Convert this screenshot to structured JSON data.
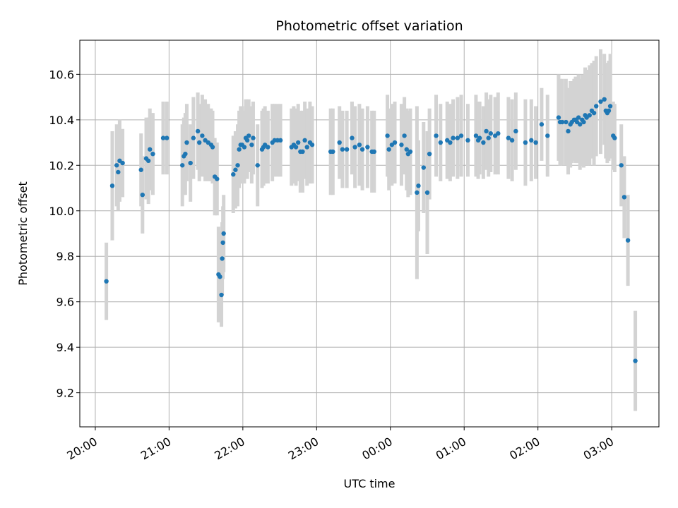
{
  "chart_data": {
    "type": "scatter",
    "title": "Photometric offset variation",
    "xlabel": "UTC time",
    "ylabel": "Photometric offset",
    "x_unit": "hours",
    "x_ticks": [
      {
        "label": "20:00",
        "value": 20
      },
      {
        "label": "21:00",
        "value": 21
      },
      {
        "label": "22:00",
        "value": 22
      },
      {
        "label": "23:00",
        "value": 23
      },
      {
        "label": "00:00",
        "value": 24
      },
      {
        "label": "01:00",
        "value": 25
      },
      {
        "label": "02:00",
        "value": 26
      },
      {
        "label": "03:00",
        "value": 27
      }
    ],
    "y_ticks": [
      "9.2",
      "9.4",
      "9.6",
      "9.8",
      "10.0",
      "10.2",
      "10.4",
      "10.6"
    ],
    "xlim": [
      19.79,
      27.64
    ],
    "ylim": [
      9.05,
      10.75
    ],
    "grid": true,
    "point_color": "#1f77b4",
    "errorbar_color": "#d3d3d3",
    "x": [
      20.15,
      20.23,
      20.29,
      20.31,
      20.33,
      20.37,
      20.62,
      20.64,
      20.69,
      20.72,
      20.74,
      20.78,
      20.92,
      20.97,
      21.18,
      21.2,
      21.22,
      21.24,
      21.29,
      21.33,
      21.39,
      21.41,
      21.45,
      21.49,
      21.53,
      21.57,
      21.59,
      21.62,
      21.65,
      21.67,
      21.69,
      21.71,
      21.72,
      21.73,
      21.74,
      21.87,
      21.9,
      21.93,
      21.95,
      21.97,
      21.99,
      22.02,
      22.04,
      22.06,
      22.08,
      22.12,
      22.14,
      22.2,
      22.26,
      22.28,
      22.3,
      22.34,
      22.4,
      22.43,
      22.47,
      22.51,
      22.66,
      22.69,
      22.72,
      22.75,
      22.78,
      22.81,
      22.84,
      22.87,
      22.91,
      22.94,
      23.19,
      23.22,
      23.31,
      23.35,
      23.41,
      23.48,
      23.52,
      23.58,
      23.62,
      23.69,
      23.75,
      23.78,
      23.96,
      23.98,
      24.02,
      24.06,
      24.15,
      24.19,
      24.22,
      24.24,
      24.27,
      24.36,
      24.38,
      24.45,
      24.5,
      24.53,
      24.62,
      24.68,
      24.77,
      24.81,
      24.85,
      24.91,
      24.96,
      25.05,
      25.16,
      25.19,
      25.21,
      25.26,
      25.3,
      25.33,
      25.36,
      25.42,
      25.46,
      25.6,
      25.65,
      25.7,
      25.83,
      25.91,
      25.97,
      26.05,
      26.13,
      26.28,
      26.3,
      26.33,
      26.38,
      26.41,
      26.44,
      26.46,
      26.49,
      26.51,
      26.53,
      26.55,
      26.57,
      26.6,
      26.62,
      26.64,
      26.66,
      26.7,
      26.73,
      26.76,
      26.79,
      26.85,
      26.9,
      26.92,
      26.94,
      26.96,
      26.98,
      27.02,
      27.04,
      27.13,
      27.17,
      27.22,
      27.32
    ],
    "y": [
      9.69,
      10.11,
      10.2,
      10.17,
      10.22,
      10.21,
      10.18,
      10.07,
      10.23,
      10.22,
      10.27,
      10.25,
      10.32,
      10.32,
      10.2,
      10.24,
      10.25,
      10.3,
      10.21,
      10.32,
      10.35,
      10.3,
      10.33,
      10.31,
      10.3,
      10.29,
      10.28,
      10.15,
      10.14,
      9.72,
      9.71,
      9.63,
      9.79,
      9.86,
      9.9,
      10.16,
      10.18,
      10.2,
      10.27,
      10.29,
      10.29,
      10.28,
      10.32,
      10.31,
      10.33,
      10.29,
      10.32,
      10.2,
      10.27,
      10.28,
      10.29,
      10.28,
      10.3,
      10.31,
      10.31,
      10.31,
      10.28,
      10.29,
      10.28,
      10.3,
      10.26,
      10.26,
      10.31,
      10.28,
      10.3,
      10.29,
      10.26,
      10.26,
      10.3,
      10.27,
      10.27,
      10.32,
      10.28,
      10.29,
      10.27,
      10.28,
      10.26,
      10.26,
      10.33,
      10.27,
      10.29,
      10.3,
      10.29,
      10.33,
      10.27,
      10.25,
      10.26,
      10.08,
      10.11,
      10.19,
      10.08,
      10.25,
      10.33,
      10.3,
      10.31,
      10.3,
      10.32,
      10.32,
      10.33,
      10.31,
      10.33,
      10.31,
      10.32,
      10.3,
      10.35,
      10.32,
      10.34,
      10.33,
      10.34,
      10.32,
      10.31,
      10.35,
      10.3,
      10.31,
      10.3,
      10.38,
      10.33,
      10.41,
      10.39,
      10.39,
      10.39,
      10.35,
      10.38,
      10.39,
      10.4,
      10.4,
      10.39,
      10.41,
      10.38,
      10.4,
      10.39,
      10.42,
      10.41,
      10.42,
      10.44,
      10.43,
      10.46,
      10.48,
      10.49,
      10.44,
      10.43,
      10.44,
      10.46,
      10.33,
      10.32,
      10.2,
      10.06,
      9.87,
      9.34
    ],
    "error": [
      0.17,
      0.24,
      0.18,
      0.17,
      0.18,
      0.15,
      0.16,
      0.17,
      0.18,
      0.19,
      0.18,
      0.18,
      0.16,
      0.16,
      0.18,
      0.17,
      0.18,
      0.17,
      0.17,
      0.18,
      0.17,
      0.17,
      0.18,
      0.18,
      0.17,
      0.16,
      0.16,
      0.17,
      0.16,
      0.21,
      0.2,
      0.14,
      0.16,
      0.16,
      0.17,
      0.17,
      0.17,
      0.18,
      0.17,
      0.17,
      0.17,
      0.16,
      0.17,
      0.17,
      0.16,
      0.17,
      0.16,
      0.18,
      0.17,
      0.17,
      0.17,
      0.16,
      0.17,
      0.16,
      0.16,
      0.16,
      0.17,
      0.17,
      0.17,
      0.17,
      0.18,
      0.18,
      0.17,
      0.17,
      0.18,
      0.17,
      0.19,
      0.19,
      0.16,
      0.17,
      0.17,
      0.16,
      0.18,
      0.18,
      0.18,
      0.18,
      0.18,
      0.18,
      0.18,
      0.18,
      0.18,
      0.18,
      0.18,
      0.17,
      0.18,
      0.19,
      0.19,
      0.38,
      0.2,
      0.2,
      0.27,
      0.2,
      0.18,
      0.17,
      0.17,
      0.17,
      0.17,
      0.18,
      0.18,
      0.16,
      0.18,
      0.17,
      0.16,
      0.16,
      0.17,
      0.17,
      0.17,
      0.17,
      0.18,
      0.18,
      0.18,
      0.17,
      0.19,
      0.18,
      0.16,
      0.16,
      0.18,
      0.19,
      0.19,
      0.19,
      0.19,
      0.19,
      0.19,
      0.18,
      0.18,
      0.19,
      0.18,
      0.19,
      0.2,
      0.2,
      0.2,
      0.21,
      0.21,
      0.22,
      0.21,
      0.23,
      0.22,
      0.23,
      0.2,
      0.21,
      0.22,
      0.22,
      0.23,
      0.15,
      0.15,
      0.18,
      0.18,
      0.2,
      0.22
    ]
  }
}
